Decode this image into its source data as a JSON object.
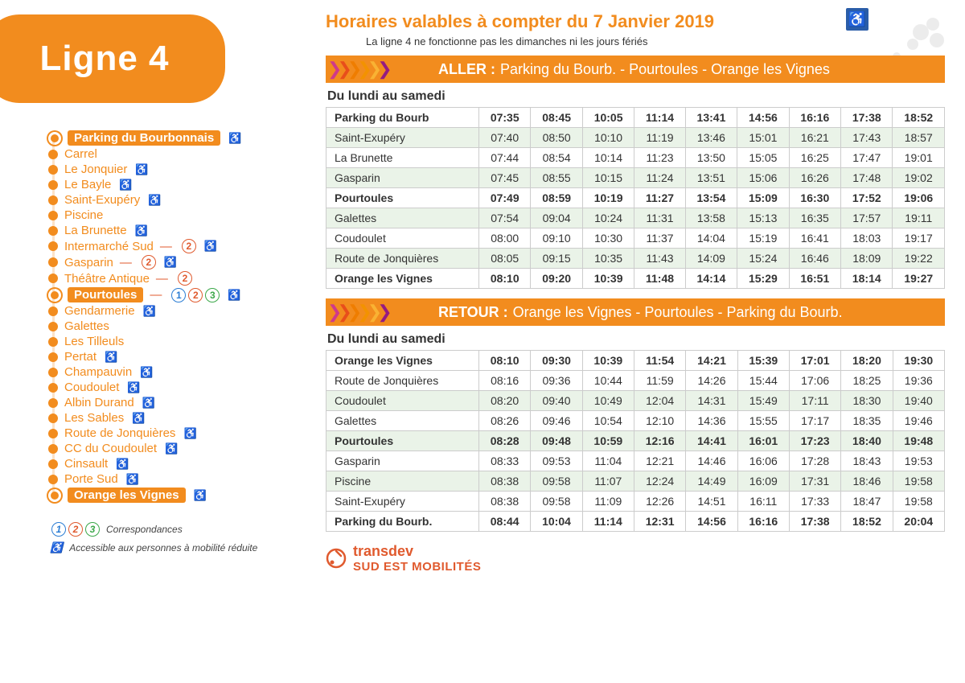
{
  "colors": {
    "brand": "#F28C1E",
    "brand2": "#E05A2E",
    "blue": "#2a5da8",
    "green": "#3CA84A",
    "rowTint": "#eaf3e8",
    "border": "#cccccc"
  },
  "line": {
    "title": "Ligne 4"
  },
  "header": {
    "title": "Horaires valables à compter du 7 Janvier 2019",
    "subtitle": "La ligne 4 ne fonctionne pas les dimanches ni les jours fériés",
    "wheelchair_icon": "♿"
  },
  "stops": [
    {
      "name": "Parking du Bourbonnais",
      "major": true,
      "wc": true
    },
    {
      "name": "Carrel"
    },
    {
      "name": "Le Jonquier",
      "wc": true
    },
    {
      "name": "Le Bayle",
      "wc": true
    },
    {
      "name": "Saint-Exupéry",
      "wc": true
    },
    {
      "name": "Piscine"
    },
    {
      "name": "La Brunette",
      "wc": true
    },
    {
      "name": "Intermarché Sud",
      "wc": true,
      "corr": [
        2
      ]
    },
    {
      "name": "Gasparin",
      "wc": true,
      "corr": [
        2
      ]
    },
    {
      "name": "Théâtre Antique",
      "corr": [
        2
      ]
    },
    {
      "name": "Pourtoules",
      "major": true,
      "wc": true,
      "corr": [
        1,
        2,
        3
      ]
    },
    {
      "name": "Gendarmerie",
      "wc": true
    },
    {
      "name": "Galettes"
    },
    {
      "name": "Les Tilleuls"
    },
    {
      "name": "Pertat",
      "wc": true
    },
    {
      "name": "Champauvin",
      "wc": true
    },
    {
      "name": "Coudoulet",
      "wc": true
    },
    {
      "name": "Albin Durand",
      "wc": true
    },
    {
      "name": "Les Sables",
      "wc": true
    },
    {
      "name": "Route de Jonquières",
      "wc": true
    },
    {
      "name": "CC du Coudoulet",
      "wc": true
    },
    {
      "name": "Cinsault",
      "wc": true
    },
    {
      "name": "Porte Sud",
      "wc": true
    },
    {
      "name": "Orange les Vignes",
      "major": true,
      "wc": true
    }
  ],
  "legend": {
    "corr_label": "Correspondances",
    "wc_label": "Accessible aux personnes à mobilité réduite"
  },
  "chevron_colors": [
    "#cf3a8a",
    "#e84e1b",
    "#ef7d00",
    "#f39200",
    "#f9b233",
    "#951b81"
  ],
  "aller": {
    "label": "ALLER :",
    "route": "Parking du Bourb. - Pourtoules - Orange les Vignes",
    "days": "Du lundi au samedi",
    "rows": [
      {
        "name": "Parking du Bourb",
        "bold": true,
        "t": [
          "07:35",
          "08:45",
          "10:05",
          "11:14",
          "13:41",
          "14:56",
          "16:16",
          "17:38",
          "18:52"
        ]
      },
      {
        "name": "Saint-Exupéry",
        "tint": true,
        "t": [
          "07:40",
          "08:50",
          "10:10",
          "11:19",
          "13:46",
          "15:01",
          "16:21",
          "17:43",
          "18:57"
        ]
      },
      {
        "name": "La Brunette",
        "t": [
          "07:44",
          "08:54",
          "10:14",
          "11:23",
          "13:50",
          "15:05",
          "16:25",
          "17:47",
          "19:01"
        ]
      },
      {
        "name": "Gasparin",
        "tint": true,
        "t": [
          "07:45",
          "08:55",
          "10:15",
          "11:24",
          "13:51",
          "15:06",
          "16:26",
          "17:48",
          "19:02"
        ]
      },
      {
        "name": "Pourtoules",
        "bold": true,
        "t": [
          "07:49",
          "08:59",
          "10:19",
          "11:27",
          "13:54",
          "15:09",
          "16:30",
          "17:52",
          "19:06"
        ]
      },
      {
        "name": "Galettes",
        "tint": true,
        "t": [
          "07:54",
          "09:04",
          "10:24",
          "11:31",
          "13:58",
          "15:13",
          "16:35",
          "17:57",
          "19:11"
        ]
      },
      {
        "name": "Coudoulet",
        "t": [
          "08:00",
          "09:10",
          "10:30",
          "11:37",
          "14:04",
          "15:19",
          "16:41",
          "18:03",
          "19:17"
        ]
      },
      {
        "name": "Route de Jonquières",
        "tint": true,
        "t": [
          "08:05",
          "09:15",
          "10:35",
          "11:43",
          "14:09",
          "15:24",
          "16:46",
          "18:09",
          "19:22"
        ]
      },
      {
        "name": "Orange les Vignes",
        "bold": true,
        "t": [
          "08:10",
          "09:20",
          "10:39",
          "11:48",
          "14:14",
          "15:29",
          "16:51",
          "18:14",
          "19:27"
        ]
      }
    ]
  },
  "retour": {
    "label": "RETOUR :",
    "route": "Orange les Vignes - Pourtoules - Parking du Bourb.",
    "days": "Du lundi au samedi",
    "rows": [
      {
        "name": "Orange les Vignes",
        "bold": true,
        "t": [
          "08:10",
          "09:30",
          "10:39",
          "11:54",
          "14:21",
          "15:39",
          "17:01",
          "18:20",
          "19:30"
        ]
      },
      {
        "name": "Route de Jonquières",
        "t": [
          "08:16",
          "09:36",
          "10:44",
          "11:59",
          "14:26",
          "15:44",
          "17:06",
          "18:25",
          "19:36"
        ]
      },
      {
        "name": "Coudoulet",
        "tint": true,
        "t": [
          "08:20",
          "09:40",
          "10:49",
          "12:04",
          "14:31",
          "15:49",
          "17:11",
          "18:30",
          "19:40"
        ]
      },
      {
        "name": "Galettes",
        "t": [
          "08:26",
          "09:46",
          "10:54",
          "12:10",
          "14:36",
          "15:55",
          "17:17",
          "18:35",
          "19:46"
        ]
      },
      {
        "name": "Pourtoules",
        "bold": true,
        "tint": true,
        "t": [
          "08:28",
          "09:48",
          "10:59",
          "12:16",
          "14:41",
          "16:01",
          "17:23",
          "18:40",
          "19:48"
        ]
      },
      {
        "name": "Gasparin",
        "t": [
          "08:33",
          "09:53",
          "11:04",
          "12:21",
          "14:46",
          "16:06",
          "17:28",
          "18:43",
          "19:53"
        ]
      },
      {
        "name": "Piscine",
        "tint": true,
        "t": [
          "08:38",
          "09:58",
          "11:07",
          "12:24",
          "14:49",
          "16:09",
          "17:31",
          "18:46",
          "19:58"
        ]
      },
      {
        "name": "Saint-Exupéry",
        "t": [
          "08:38",
          "09:58",
          "11:09",
          "12:26",
          "14:51",
          "16:11",
          "17:33",
          "18:47",
          "19:58"
        ]
      },
      {
        "name": "Parking du Bourb.",
        "bold": true,
        "t": [
          "08:44",
          "10:04",
          "11:14",
          "12:31",
          "14:56",
          "16:16",
          "17:38",
          "18:52",
          "20:04"
        ]
      }
    ]
  },
  "footer": {
    "brand1": "transdev",
    "brand2": "SUD EST MOBILITÉS"
  }
}
